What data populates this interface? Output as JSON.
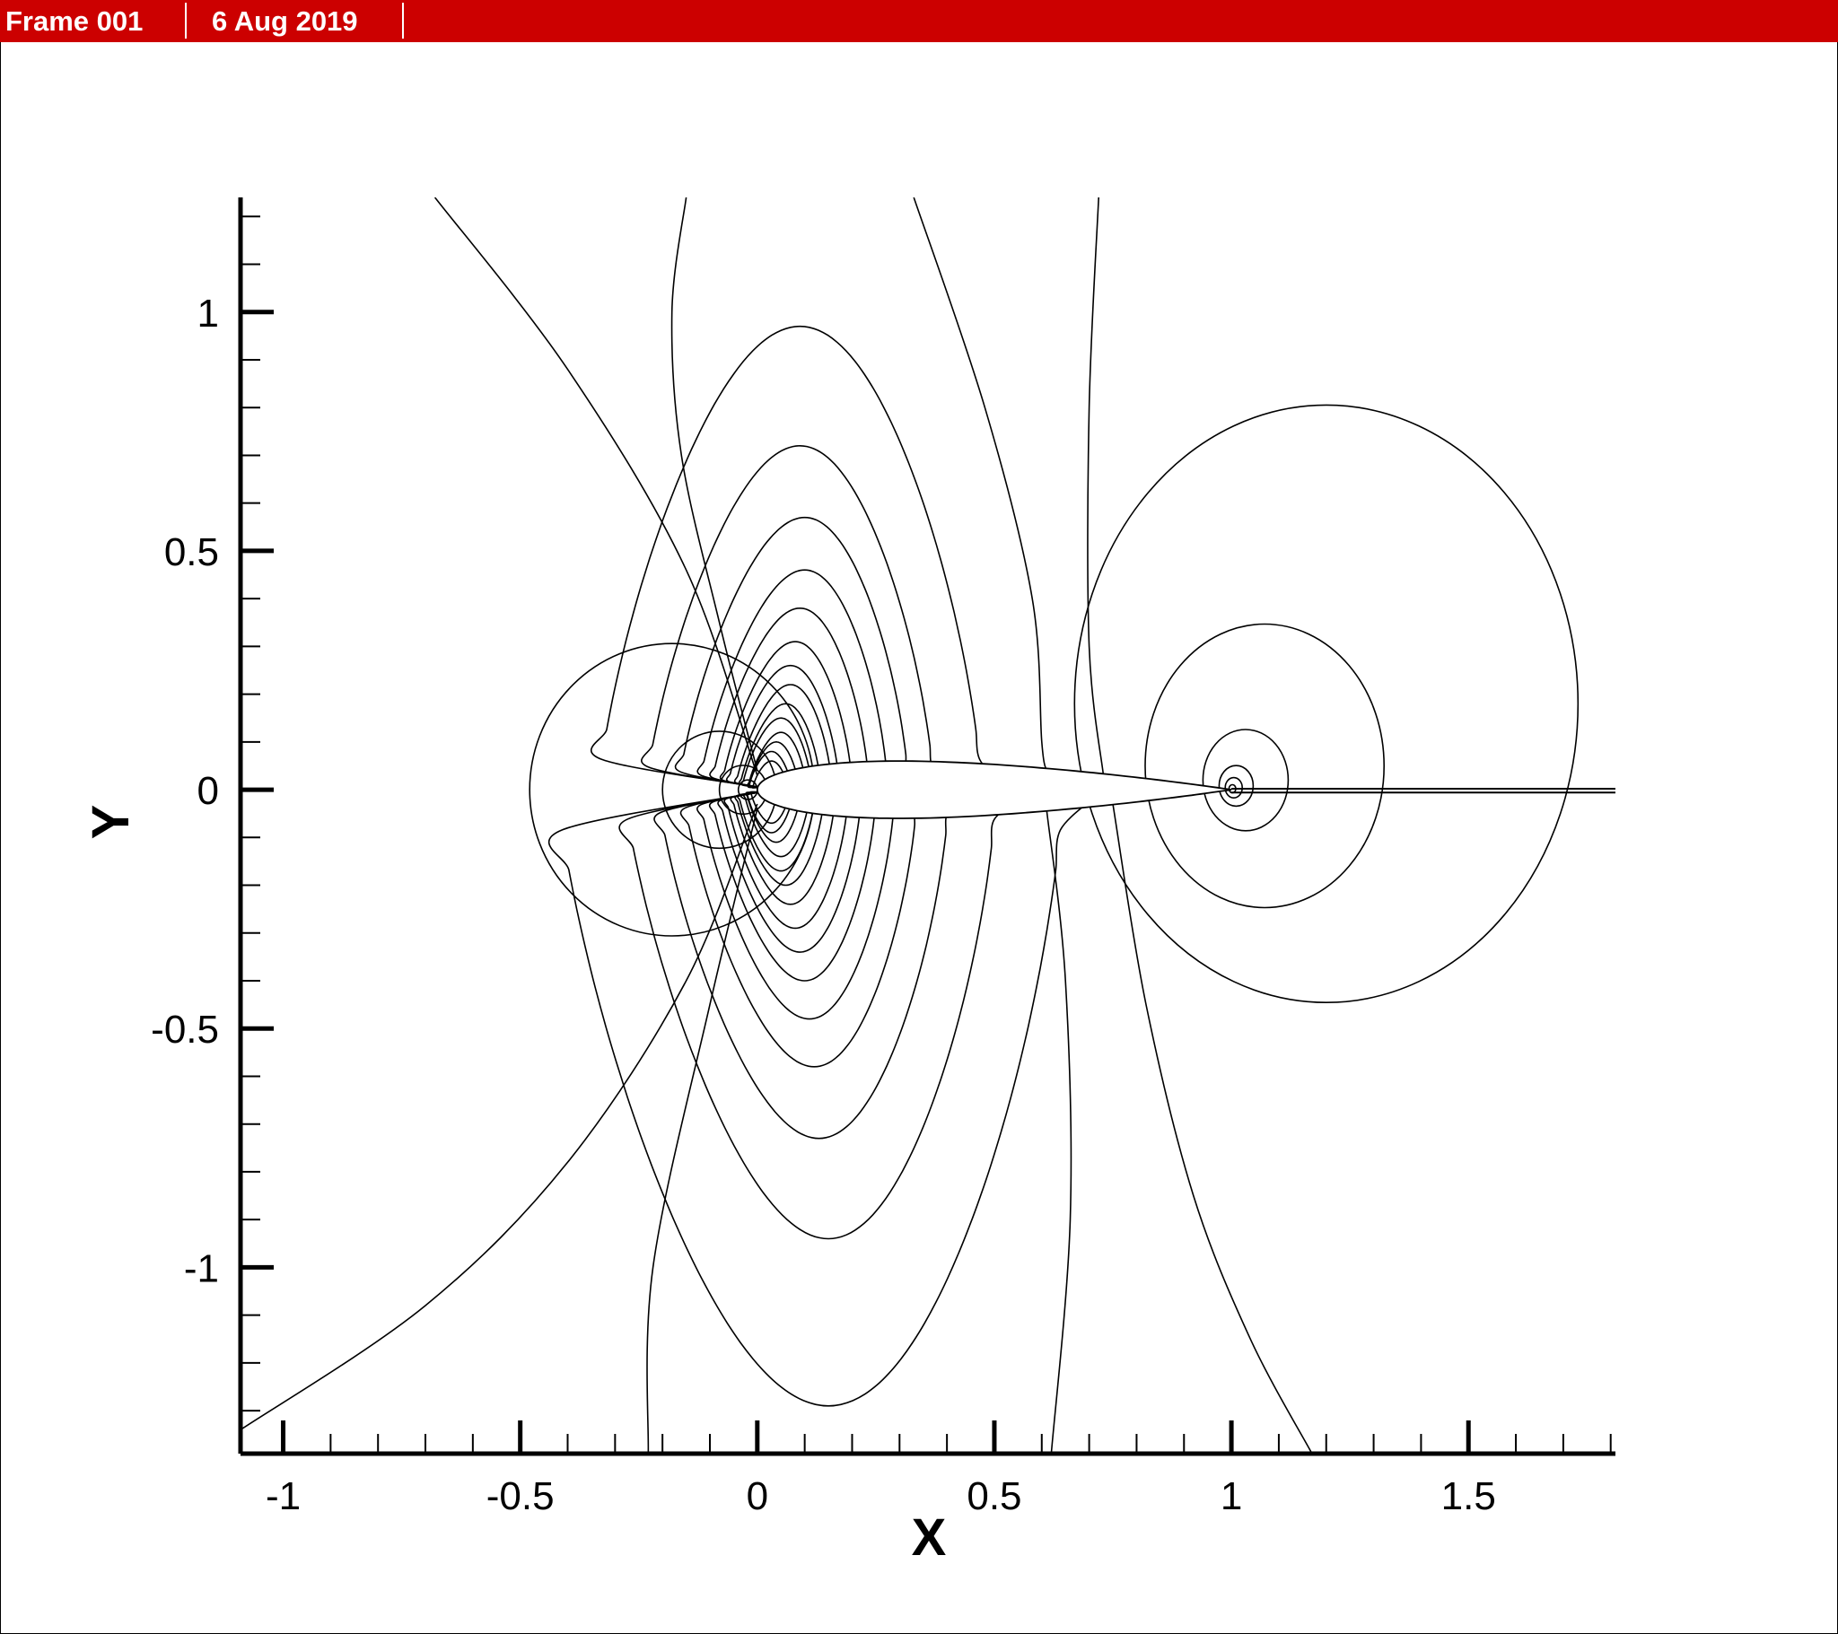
{
  "header": {
    "frame_label": "Frame 001",
    "date_label": "6 Aug 2019",
    "background_color": "#cc0000",
    "text_color": "#ffffff"
  },
  "chart_data": {
    "type": "contour",
    "title": "",
    "xlabel": "X",
    "ylabel": "Y",
    "xlim": [
      -1.09,
      1.81
    ],
    "ylim": [
      -1.39,
      1.24
    ],
    "x_ticks": [
      -1,
      -0.5,
      0,
      0.5,
      1,
      1.5
    ],
    "x_tick_labels": [
      "-1",
      "-0.5",
      "0",
      "0.5",
      "1",
      "1.5"
    ],
    "y_ticks": [
      -1,
      -0.5,
      0,
      0.5,
      1
    ],
    "y_tick_labels": [
      "-1",
      "-0.5",
      "0",
      "0.5",
      "1"
    ],
    "x_minor_step": 0.1,
    "y_minor_step": 0.1,
    "grid": false,
    "legend": "none",
    "line_color": "#000000",
    "body": {
      "name": "airfoil",
      "leading_edge": [
        0,
        0
      ],
      "trailing_edge": [
        1,
        0
      ],
      "max_thickness": 0.12
    },
    "wake": {
      "x_start": 1.0,
      "x_end": 1.81,
      "y_upper": 0.002,
      "y_lower": -0.006
    },
    "leading_edge_upper_loops": [
      {
        "peak_x": 0.09,
        "peak_y": 0.97
      },
      {
        "peak_x": 0.09,
        "peak_y": 0.72
      },
      {
        "peak_x": 0.1,
        "peak_y": 0.57
      },
      {
        "peak_x": 0.1,
        "peak_y": 0.46
      },
      {
        "peak_x": 0.09,
        "peak_y": 0.38
      },
      {
        "peak_x": 0.08,
        "peak_y": 0.31
      },
      {
        "peak_x": 0.07,
        "peak_y": 0.26
      },
      {
        "peak_x": 0.07,
        "peak_y": 0.22
      },
      {
        "peak_x": 0.06,
        "peak_y": 0.18
      },
      {
        "peak_x": 0.05,
        "peak_y": 0.15
      },
      {
        "peak_x": 0.05,
        "peak_y": 0.12
      },
      {
        "peak_x": 0.04,
        "peak_y": 0.1
      },
      {
        "peak_x": 0.03,
        "peak_y": 0.08
      },
      {
        "peak_x": 0.03,
        "peak_y": 0.06
      }
    ],
    "leading_edge_lower_loops": [
      {
        "peak_x": 0.15,
        "peak_y": -1.29
      },
      {
        "peak_x": 0.15,
        "peak_y": -0.94
      },
      {
        "peak_x": 0.13,
        "peak_y": -0.73
      },
      {
        "peak_x": 0.12,
        "peak_y": -0.58
      },
      {
        "peak_x": 0.11,
        "peak_y": -0.48
      },
      {
        "peak_x": 0.1,
        "peak_y": -0.4
      },
      {
        "peak_x": 0.09,
        "peak_y": -0.34
      },
      {
        "peak_x": 0.08,
        "peak_y": -0.29
      },
      {
        "peak_x": 0.07,
        "peak_y": -0.24
      },
      {
        "peak_x": 0.06,
        "peak_y": -0.2
      },
      {
        "peak_x": 0.05,
        "peak_y": -0.17
      },
      {
        "peak_x": 0.05,
        "peak_y": -0.14
      },
      {
        "peak_x": 0.04,
        "peak_y": -0.11
      },
      {
        "peak_x": 0.03,
        "peak_y": -0.09
      },
      {
        "peak_x": 0.03,
        "peak_y": -0.07
      }
    ],
    "upstream_loops": [
      {
        "center_x": -0.18,
        "center_y": 0,
        "radius": 0.3
      },
      {
        "center_x": -0.08,
        "center_y": 0,
        "radius": 0.12
      },
      {
        "center_x": -0.03,
        "center_y": 0,
        "radius": 0.05
      },
      {
        "center_x": -0.02,
        "center_y": 0,
        "radius": 0.02
      }
    ],
    "trailing_edge_loops": [
      {
        "center_x": 1.2,
        "center_y": 0.18,
        "radius": 0.59
      },
      {
        "center_x": 1.07,
        "center_y": 0.05,
        "radius": 0.28
      },
      {
        "center_x": 1.03,
        "center_y": 0.02,
        "radius": 0.1
      },
      {
        "center_x": 1.01,
        "center_y": 0.008,
        "radius": 0.04
      },
      {
        "center_x": 1.005,
        "center_y": 0.004,
        "radius": 0.02
      },
      {
        "center_x": 1.002,
        "center_y": 0.002,
        "radius": 0.008
      }
    ],
    "open_lines": [
      [
        [
          -0.68,
          1.24
        ],
        [
          -0.4,
          0.88
        ],
        [
          -0.15,
          0.46
        ],
        [
          0,
          0.03
        ]
      ],
      [
        [
          0,
          -0.03
        ],
        [
          -0.15,
          -0.4
        ],
        [
          -0.4,
          -0.78
        ],
        [
          -0.7,
          -1.08
        ],
        [
          -1.09,
          -1.34
        ]
      ],
      [
        [
          -0.15,
          1.24
        ],
        [
          -0.18,
          1.0
        ],
        [
          -0.16,
          0.7
        ],
        [
          -0.08,
          0.35
        ],
        [
          0,
          0.04
        ]
      ],
      [
        [
          0,
          -0.04
        ],
        [
          -0.1,
          -0.45
        ],
        [
          -0.22,
          -1.0
        ],
        [
          -0.23,
          -1.39
        ]
      ],
      [
        [
          0.33,
          1.24
        ],
        [
          0.48,
          0.8
        ],
        [
          0.58,
          0.4
        ],
        [
          0.6,
          0.1
        ],
        [
          0.61,
          0.04
        ]
      ],
      [
        [
          0.61,
          -0.04
        ],
        [
          0.65,
          -0.4
        ],
        [
          0.66,
          -0.9
        ],
        [
          0.62,
          -1.39
        ]
      ],
      [
        [
          0.72,
          1.24
        ],
        [
          0.7,
          0.8
        ],
        [
          0.7,
          0.3
        ],
        [
          0.73,
          0.03
        ]
      ],
      [
        [
          0.75,
          -0.03
        ],
        [
          0.82,
          -0.45
        ],
        [
          0.92,
          -0.85
        ],
        [
          1.04,
          -1.15
        ],
        [
          1.17,
          -1.39
        ]
      ]
    ]
  }
}
